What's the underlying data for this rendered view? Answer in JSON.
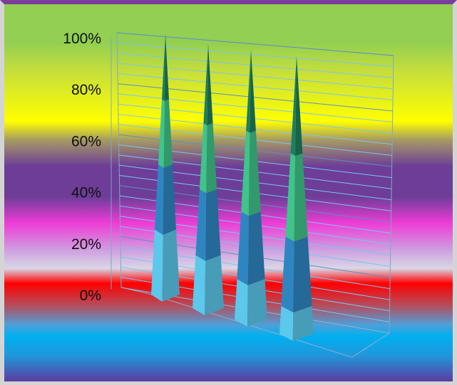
{
  "chart_data": {
    "type": "bar",
    "subtype": "3d-stacked-100-pyramid",
    "categories": [
      "",
      "",
      "",
      ""
    ],
    "series": [
      {
        "color": "#5bc8ec",
        "values": [
          25,
          20,
          15,
          10
        ]
      },
      {
        "color": "#2e86c1",
        "values": [
          25,
          25,
          25,
          25
        ]
      },
      {
        "color": "#3fc48a",
        "values": [
          25,
          25,
          30,
          30
        ]
      },
      {
        "color": "#1e7f5c",
        "values": [
          25,
          30,
          30,
          35
        ]
      }
    ],
    "y_ticks": [
      "0%",
      "20%",
      "40%",
      "60%",
      "80%",
      "100%"
    ],
    "ylim": [
      0,
      100
    ],
    "title": "",
    "xlabel": "",
    "ylabel": "",
    "grid": true,
    "legend": "none"
  }
}
